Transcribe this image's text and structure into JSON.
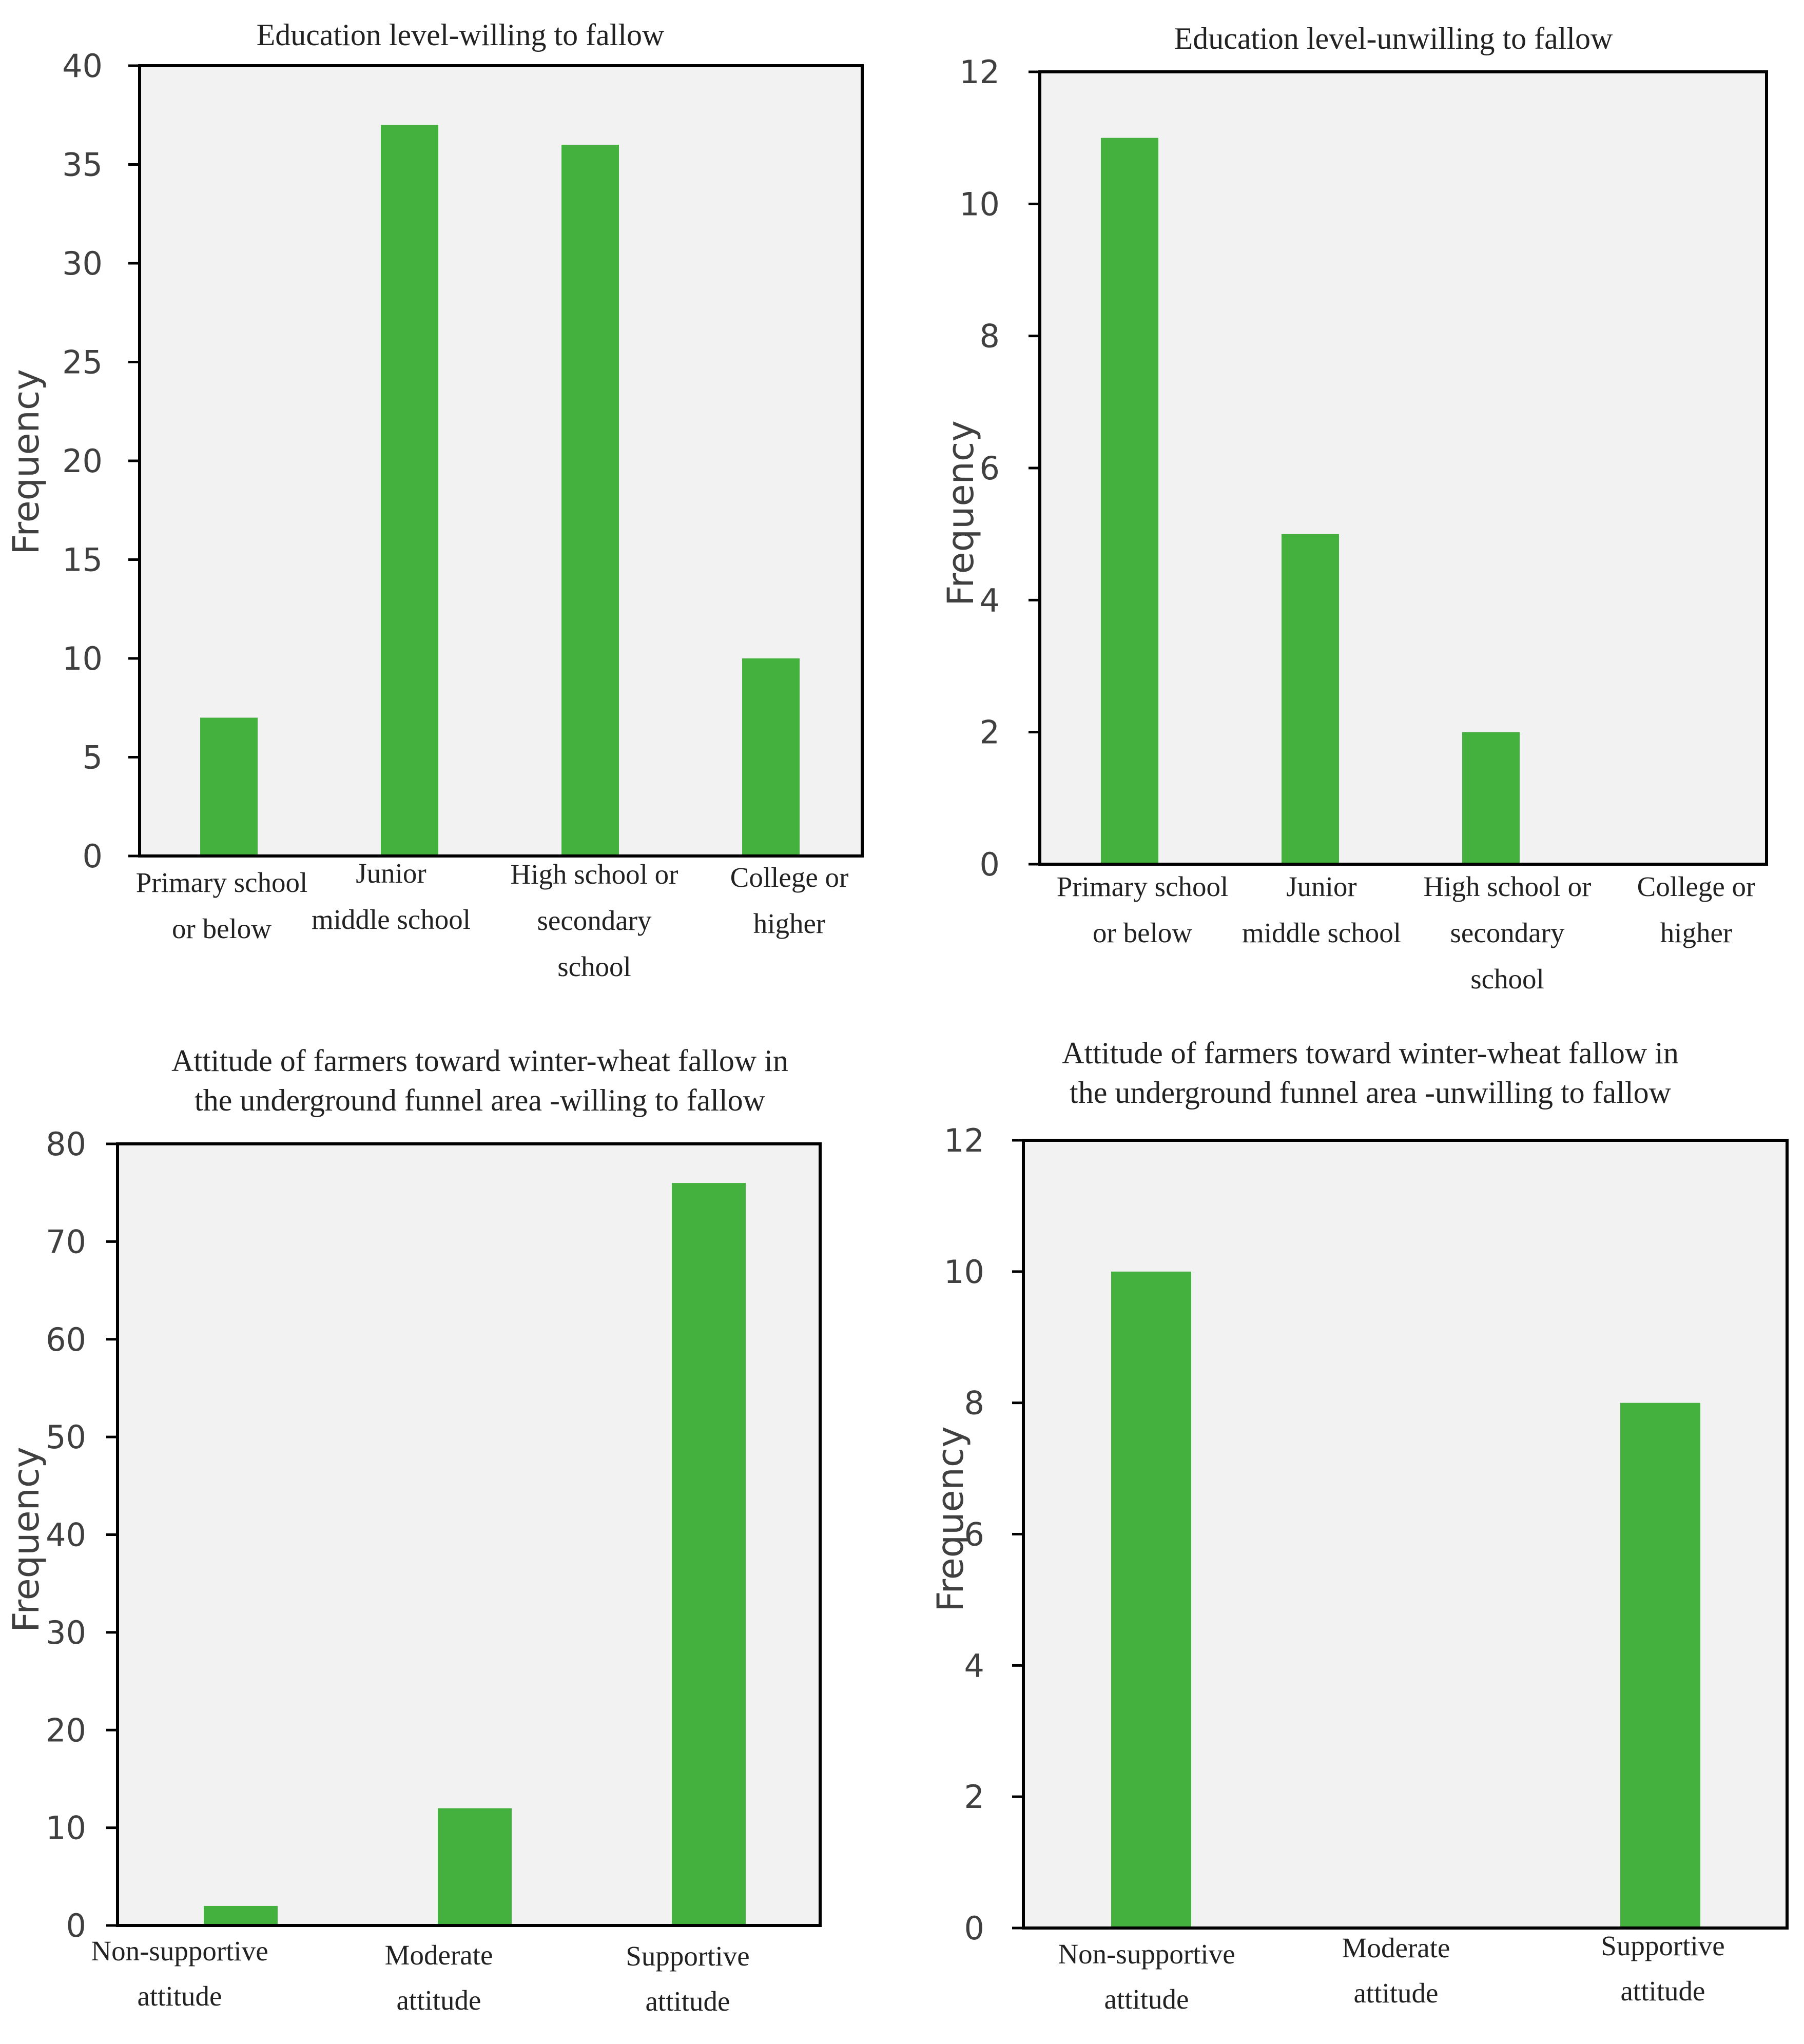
{
  "chart_data": [
    {
      "type": "bar",
      "title": "Education level-willing to fallow",
      "ylabel": "Frequency",
      "xlabel": "",
      "ylim": [
        0,
        40
      ],
      "yticks": [
        0,
        5,
        10,
        15,
        20,
        25,
        30,
        35,
        40
      ],
      "categories": [
        [
          "Primary school",
          "or below"
        ],
        [
          "Junior",
          "middle school"
        ],
        [
          "High school or",
          "secondary",
          "school"
        ],
        [
          "College or",
          "higher"
        ]
      ],
      "values": [
        7,
        37,
        36,
        10
      ],
      "bar_color": "#44b03e"
    },
    {
      "type": "bar",
      "title": "Education level-unwilling to fallow",
      "ylabel": "Frequency",
      "xlabel": "",
      "ylim": [
        0,
        12
      ],
      "yticks": [
        0,
        2,
        4,
        6,
        8,
        10,
        12
      ],
      "categories": [
        [
          "Primary school",
          "or below"
        ],
        [
          "Junior",
          "middle school"
        ],
        [
          "High school or",
          "secondary",
          "school"
        ],
        [
          "College or",
          "higher"
        ]
      ],
      "values": [
        11,
        5,
        2,
        0
      ],
      "bar_color": "#44b03e"
    },
    {
      "type": "bar",
      "title": [
        "Attitude of farmers toward winter-wheat fallow in",
        "the underground funnel area -willing to fallow"
      ],
      "ylabel": "Frequency",
      "xlabel": "",
      "ylim": [
        0,
        80
      ],
      "yticks": [
        0,
        10,
        20,
        30,
        40,
        50,
        60,
        70,
        80
      ],
      "categories": [
        [
          "Non-supportive",
          "attitude"
        ],
        [
          "Moderate",
          "attitude"
        ],
        [
          "Supportive",
          "attitude"
        ]
      ],
      "values": [
        2,
        12,
        76
      ],
      "bar_color": "#44b03e"
    },
    {
      "type": "bar",
      "title": [
        "Attitude of farmers toward winter-wheat fallow in",
        "the underground funnel area -unwilling to fallow"
      ],
      "ylabel": "Frequency",
      "xlabel": "",
      "ylim": [
        0,
        12
      ],
      "yticks": [
        0,
        2,
        4,
        6,
        8,
        10,
        12
      ],
      "categories": [
        [
          "Non-supportive",
          "attitude"
        ],
        [
          "Moderate",
          "attitude"
        ],
        [
          "Supportive",
          "attitude"
        ]
      ],
      "values": [
        10,
        0,
        8
      ],
      "bar_color": "#44b03e"
    }
  ],
  "colors": {
    "plot_background": "#f2f2f2",
    "axis": "#000000",
    "bar": "#44b03e"
  }
}
